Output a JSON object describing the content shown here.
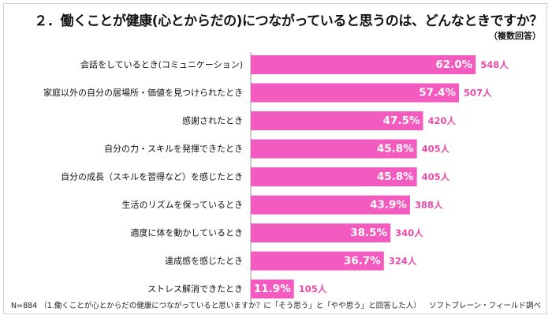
{
  "header": {
    "title": "２．働くことが健康(心とからだの)につながっていると思うのは、どんなときですか？",
    "subtitle": "（複数回答）"
  },
  "footer": {
    "note": "N=884 （1.働くことが心とからだの健康につながっていると思いますか？に「そう思う」と「やや思う」と回答した人）",
    "source": "ソフトブレーン・フィールド調べ"
  },
  "colors": {
    "bar": "#f45bc0",
    "bar_label": "#ffffff",
    "count_label": "#ea4aa8",
    "axis": "#9a9a9a"
  },
  "chart_data": {
    "type": "bar",
    "orientation": "horizontal",
    "categories": [
      "会話をしているとき(コミュニケーション)",
      "家庭以外の自分の居場所・価値を見つけられたとき",
      "感謝されたとき",
      "自分の力・スキルを発揮できたとき",
      "自分の成長（スキルを習得など）を感じたとき",
      "生活のリズムを保っているとき",
      "適度に体を動かしているとき",
      "達成感を感じたとき",
      "ストレス解消できたとき"
    ],
    "values": [
      62.0,
      57.4,
      47.5,
      45.8,
      45.8,
      43.9,
      38.5,
      36.7,
      11.9
    ],
    "value_labels": [
      "62.0%",
      "57.4%",
      "47.5%",
      "45.8%",
      "45.8%",
      "43.9%",
      "38.5%",
      "36.7%",
      "11.9%"
    ],
    "counts": [
      "548人",
      "507人",
      "420人",
      "405人",
      "405人",
      "388人",
      "340人",
      "324人",
      "105人"
    ],
    "xlim": [
      0,
      70
    ],
    "grid": false,
    "legend": "none"
  }
}
